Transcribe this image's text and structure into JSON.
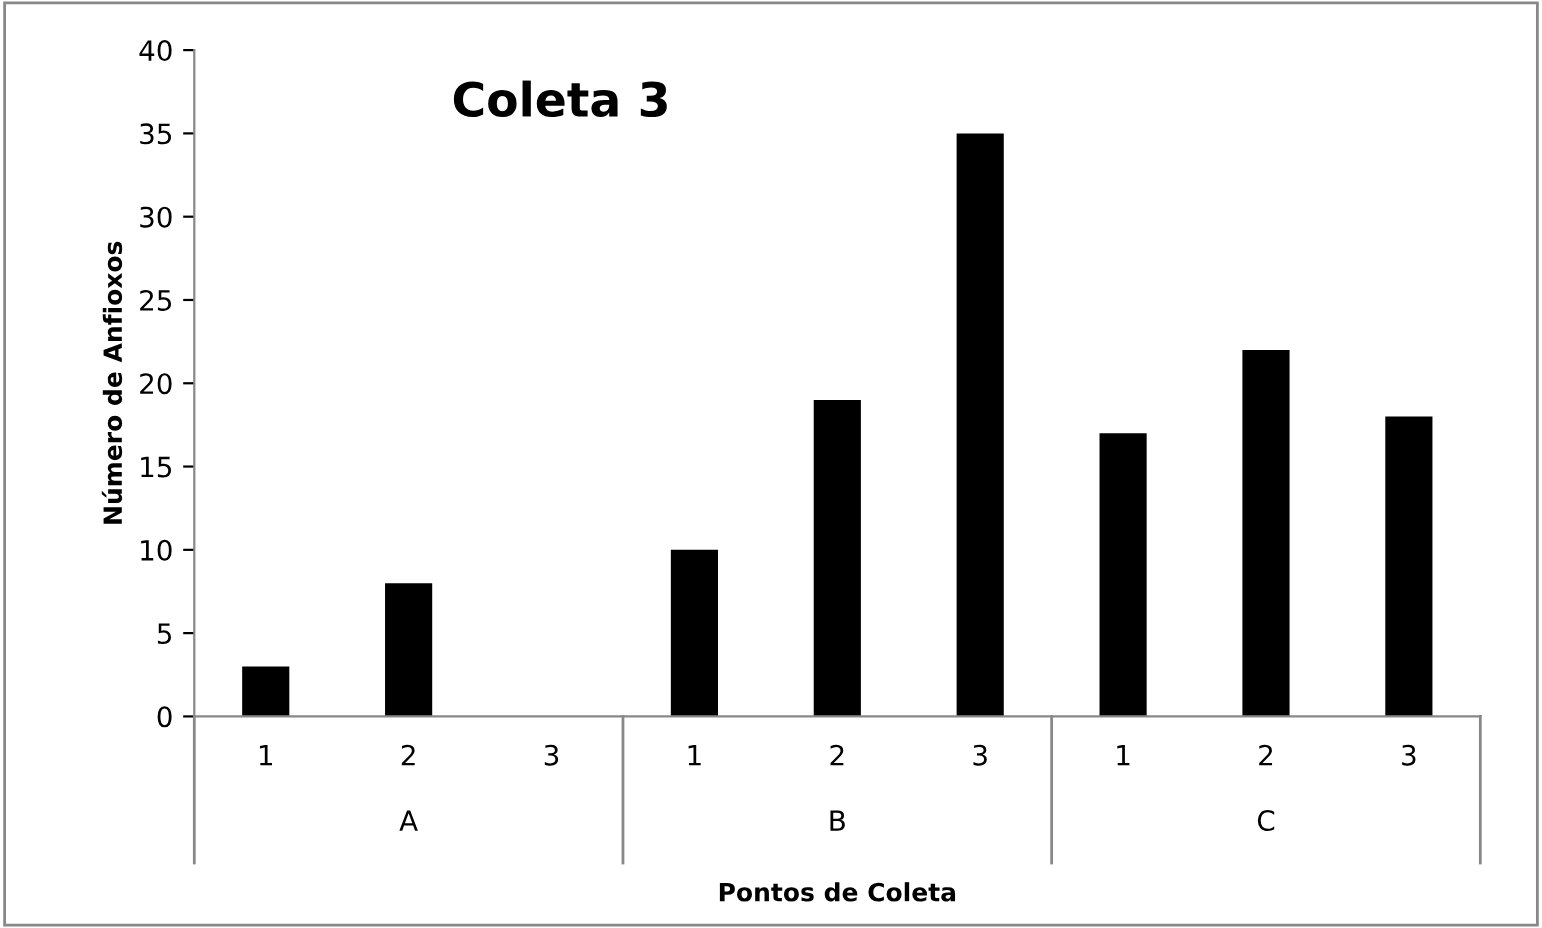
{
  "chart_data": {
    "type": "bar",
    "title": "Coleta 3",
    "xlabel": "Pontos de Coleta",
    "ylabel": "Número de Anfioxos",
    "categories": [
      "1",
      "2",
      "3",
      "1",
      "2",
      "3",
      "1",
      "2",
      "3"
    ],
    "values": [
      3,
      8,
      0,
      10,
      19,
      35,
      17,
      22,
      18
    ],
    "color": "#000000",
    "annotations": [
      "A",
      "B",
      "C"
    ],
    "ylim": [
      0,
      40
    ],
    "yticks": [
      0,
      5,
      10,
      15,
      20,
      25,
      30,
      35,
      40
    ],
    "grid": false,
    "legend": false
  }
}
